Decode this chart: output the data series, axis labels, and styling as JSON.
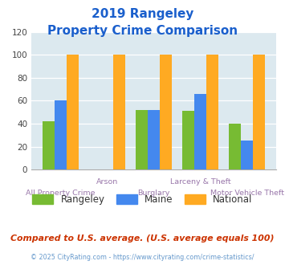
{
  "title_line1": "2019 Rangeley",
  "title_line2": "Property Crime Comparison",
  "categories": [
    "All Property Crime",
    "Arson",
    "Burglary",
    "Larceny & Theft",
    "Motor Vehicle Theft"
  ],
  "categories_row1": [
    "",
    "Arson",
    "",
    "Larceny & Theft",
    ""
  ],
  "categories_row2": [
    "All Property Crime",
    "",
    "Burglary",
    "",
    "Motor Vehicle Theft"
  ],
  "rangeley": [
    42,
    0,
    52,
    51,
    40
  ],
  "maine": [
    60,
    0,
    52,
    66,
    25
  ],
  "national": [
    100,
    100,
    100,
    100,
    100
  ],
  "bar_colors": {
    "rangeley": "#77bb33",
    "maine": "#4488ee",
    "national": "#ffaa22"
  },
  "ylim": [
    0,
    120
  ],
  "yticks": [
    0,
    20,
    40,
    60,
    80,
    100,
    120
  ],
  "plot_bg": "#dce9ef",
  "title_color": "#1a5fcc",
  "xlabel_color_row1": "#9977aa",
  "xlabel_color_row2": "#9977aa",
  "footer_note": "Compared to U.S. average. (U.S. average equals 100)",
  "footer_copy": "© 2025 CityRating.com - https://www.cityrating.com/crime-statistics/",
  "footer_note_color": "#cc3300",
  "footer_copy_color": "#6699cc",
  "legend_labels": [
    "Rangeley",
    "Maine",
    "National"
  ],
  "legend_label_colors": [
    "#333333",
    "#4488ee",
    "#ffaa22"
  ]
}
